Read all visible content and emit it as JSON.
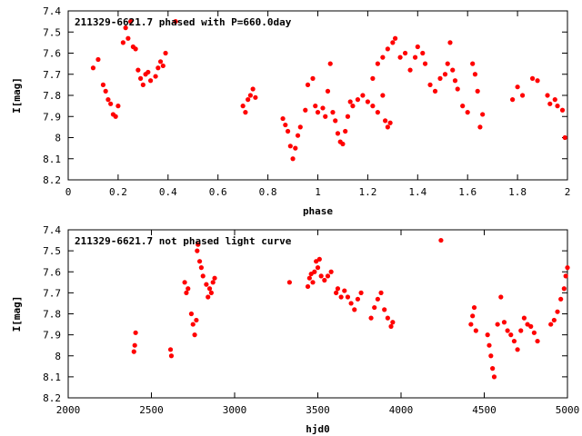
{
  "chart_data": [
    {
      "type": "scatter",
      "title": "211329-6621.7 phased with P=660.0day",
      "xlabel": "phase",
      "ylabel": "I[mag]",
      "xlim": [
        0,
        2
      ],
      "ylim": [
        8.2,
        7.4
      ],
      "y_inverted": true,
      "xticks": [
        "0",
        "0.2",
        "0.4",
        "0.6",
        "0.8",
        "1",
        "1.2",
        "1.4",
        "1.6",
        "1.8",
        "2"
      ],
      "yticks": [
        "7.4",
        "7.5",
        "7.6",
        "7.7",
        "7.8",
        "7.9",
        "8",
        "8.1",
        "8.2"
      ],
      "marker_color": "#ff0000",
      "grid": false,
      "points": [
        [
          0.1,
          7.67
        ],
        [
          0.12,
          7.63
        ],
        [
          0.14,
          7.75
        ],
        [
          0.15,
          7.78
        ],
        [
          0.16,
          7.82
        ],
        [
          0.17,
          7.84
        ],
        [
          0.18,
          7.89
        ],
        [
          0.19,
          7.9
        ],
        [
          0.2,
          7.85
        ],
        [
          0.22,
          7.55
        ],
        [
          0.23,
          7.48
        ],
        [
          0.24,
          7.53
        ],
        [
          0.25,
          7.45
        ],
        [
          0.26,
          7.57
        ],
        [
          0.27,
          7.58
        ],
        [
          0.28,
          7.68
        ],
        [
          0.29,
          7.72
        ],
        [
          0.3,
          7.75
        ],
        [
          0.31,
          7.7
        ],
        [
          0.32,
          7.69
        ],
        [
          0.33,
          7.73
        ],
        [
          0.35,
          7.71
        ],
        [
          0.36,
          7.67
        ],
        [
          0.37,
          7.64
        ],
        [
          0.38,
          7.66
        ],
        [
          0.39,
          7.6
        ],
        [
          0.43,
          7.45
        ],
        [
          0.7,
          7.85
        ],
        [
          0.71,
          7.88
        ],
        [
          0.72,
          7.82
        ],
        [
          0.73,
          7.8
        ],
        [
          0.74,
          7.77
        ],
        [
          0.75,
          7.81
        ],
        [
          0.86,
          7.91
        ],
        [
          0.87,
          7.94
        ],
        [
          0.88,
          7.97
        ],
        [
          0.89,
          8.04
        ],
        [
          0.9,
          8.1
        ],
        [
          0.91,
          8.05
        ],
        [
          0.92,
          7.99
        ],
        [
          0.93,
          7.95
        ],
        [
          0.95,
          7.87
        ],
        [
          0.96,
          7.75
        ],
        [
          0.98,
          7.72
        ],
        [
          0.99,
          7.85
        ],
        [
          1.0,
          7.88
        ],
        [
          1.02,
          7.86
        ],
        [
          1.03,
          7.9
        ],
        [
          1.04,
          7.78
        ],
        [
          1.05,
          7.65
        ],
        [
          1.06,
          7.88
        ],
        [
          1.07,
          7.92
        ],
        [
          1.08,
          7.98
        ],
        [
          1.09,
          8.02
        ],
        [
          1.1,
          8.03
        ],
        [
          1.11,
          7.97
        ],
        [
          1.12,
          7.9
        ],
        [
          1.13,
          7.83
        ],
        [
          1.14,
          7.85
        ],
        [
          1.16,
          7.82
        ],
        [
          1.18,
          7.8
        ],
        [
          1.2,
          7.83
        ],
        [
          1.22,
          7.85
        ],
        [
          1.24,
          7.88
        ],
        [
          1.26,
          7.8
        ],
        [
          1.27,
          7.92
        ],
        [
          1.28,
          7.95
        ],
        [
          1.29,
          7.93
        ],
        [
          1.22,
          7.72
        ],
        [
          1.24,
          7.65
        ],
        [
          1.26,
          7.62
        ],
        [
          1.28,
          7.58
        ],
        [
          1.3,
          7.55
        ],
        [
          1.31,
          7.53
        ],
        [
          1.33,
          7.62
        ],
        [
          1.35,
          7.6
        ],
        [
          1.37,
          7.68
        ],
        [
          1.39,
          7.62
        ],
        [
          1.4,
          7.57
        ],
        [
          1.42,
          7.6
        ],
        [
          1.43,
          7.65
        ],
        [
          1.45,
          7.75
        ],
        [
          1.47,
          7.78
        ],
        [
          1.49,
          7.72
        ],
        [
          1.51,
          7.7
        ],
        [
          1.52,
          7.65
        ],
        [
          1.53,
          7.55
        ],
        [
          1.54,
          7.68
        ],
        [
          1.55,
          7.73
        ],
        [
          1.56,
          7.77
        ],
        [
          1.58,
          7.85
        ],
        [
          1.6,
          7.88
        ],
        [
          1.62,
          7.65
        ],
        [
          1.63,
          7.7
        ],
        [
          1.64,
          7.78
        ],
        [
          1.65,
          7.95
        ],
        [
          1.66,
          7.89
        ],
        [
          1.78,
          7.82
        ],
        [
          1.8,
          7.76
        ],
        [
          1.82,
          7.8
        ],
        [
          1.86,
          7.72
        ],
        [
          1.88,
          7.73
        ],
        [
          1.92,
          7.8
        ],
        [
          1.93,
          7.84
        ],
        [
          1.95,
          7.82
        ],
        [
          1.96,
          7.85
        ],
        [
          1.98,
          7.87
        ],
        [
          1.99,
          8.0
        ]
      ]
    },
    {
      "type": "scatter",
      "title": "211329-6621.7 not phased light curve",
      "xlabel": "hjd0",
      "ylabel": "I[mag]",
      "xlim": [
        2000,
        5000
      ],
      "ylim": [
        8.2,
        7.4
      ],
      "y_inverted": true,
      "xticks": [
        "2000",
        "2500",
        "3000",
        "3500",
        "4000",
        "4500",
        "5000"
      ],
      "yticks": [
        "7.4",
        "7.5",
        "7.6",
        "7.7",
        "7.8",
        "7.9",
        "8",
        "8.1",
        "8.2"
      ],
      "marker_color": "#ff0000",
      "grid": false,
      "points": [
        [
          2395,
          7.98
        ],
        [
          2400,
          7.95
        ],
        [
          2405,
          7.89
        ],
        [
          2615,
          7.97
        ],
        [
          2620,
          8.0
        ],
        [
          2700,
          7.65
        ],
        [
          2710,
          7.7
        ],
        [
          2720,
          7.68
        ],
        [
          2740,
          7.8
        ],
        [
          2750,
          7.85
        ],
        [
          2760,
          7.9
        ],
        [
          2770,
          7.83
        ],
        [
          2775,
          7.5
        ],
        [
          2780,
          7.47
        ],
        [
          2790,
          7.55
        ],
        [
          2800,
          7.58
        ],
        [
          2810,
          7.62
        ],
        [
          2830,
          7.66
        ],
        [
          2840,
          7.72
        ],
        [
          2850,
          7.68
        ],
        [
          2860,
          7.7
        ],
        [
          2870,
          7.65
        ],
        [
          2880,
          7.63
        ],
        [
          3330,
          7.65
        ],
        [
          3440,
          7.67
        ],
        [
          3450,
          7.63
        ],
        [
          3460,
          7.61
        ],
        [
          3470,
          7.65
        ],
        [
          3480,
          7.6
        ],
        [
          3490,
          7.55
        ],
        [
          3500,
          7.58
        ],
        [
          3510,
          7.54
        ],
        [
          3520,
          7.62
        ],
        [
          3540,
          7.64
        ],
        [
          3560,
          7.62
        ],
        [
          3580,
          7.6
        ],
        [
          3610,
          7.7
        ],
        [
          3620,
          7.68
        ],
        [
          3640,
          7.72
        ],
        [
          3660,
          7.69
        ],
        [
          3680,
          7.72
        ],
        [
          3700,
          7.75
        ],
        [
          3720,
          7.78
        ],
        [
          3740,
          7.73
        ],
        [
          3760,
          7.7
        ],
        [
          3820,
          7.82
        ],
        [
          3840,
          7.77
        ],
        [
          3860,
          7.73
        ],
        [
          3880,
          7.7
        ],
        [
          3900,
          7.78
        ],
        [
          3920,
          7.82
        ],
        [
          3940,
          7.86
        ],
        [
          3950,
          7.84
        ],
        [
          4240,
          7.45
        ],
        [
          4420,
          7.85
        ],
        [
          4430,
          7.81
        ],
        [
          4440,
          7.77
        ],
        [
          4450,
          7.88
        ],
        [
          4520,
          7.9
        ],
        [
          4530,
          7.95
        ],
        [
          4540,
          8.0
        ],
        [
          4550,
          8.06
        ],
        [
          4560,
          8.1
        ],
        [
          4580,
          7.85
        ],
        [
          4600,
          7.72
        ],
        [
          4620,
          7.84
        ],
        [
          4640,
          7.88
        ],
        [
          4660,
          7.9
        ],
        [
          4680,
          7.93
        ],
        [
          4700,
          7.97
        ],
        [
          4720,
          7.88
        ],
        [
          4740,
          7.82
        ],
        [
          4760,
          7.85
        ],
        [
          4780,
          7.86
        ],
        [
          4800,
          7.89
        ],
        [
          4820,
          7.93
        ],
        [
          4900,
          7.85
        ],
        [
          4920,
          7.83
        ],
        [
          4940,
          7.79
        ],
        [
          4960,
          7.73
        ],
        [
          4980,
          7.68
        ],
        [
          4990,
          7.62
        ],
        [
          5000,
          7.58
        ]
      ]
    }
  ]
}
